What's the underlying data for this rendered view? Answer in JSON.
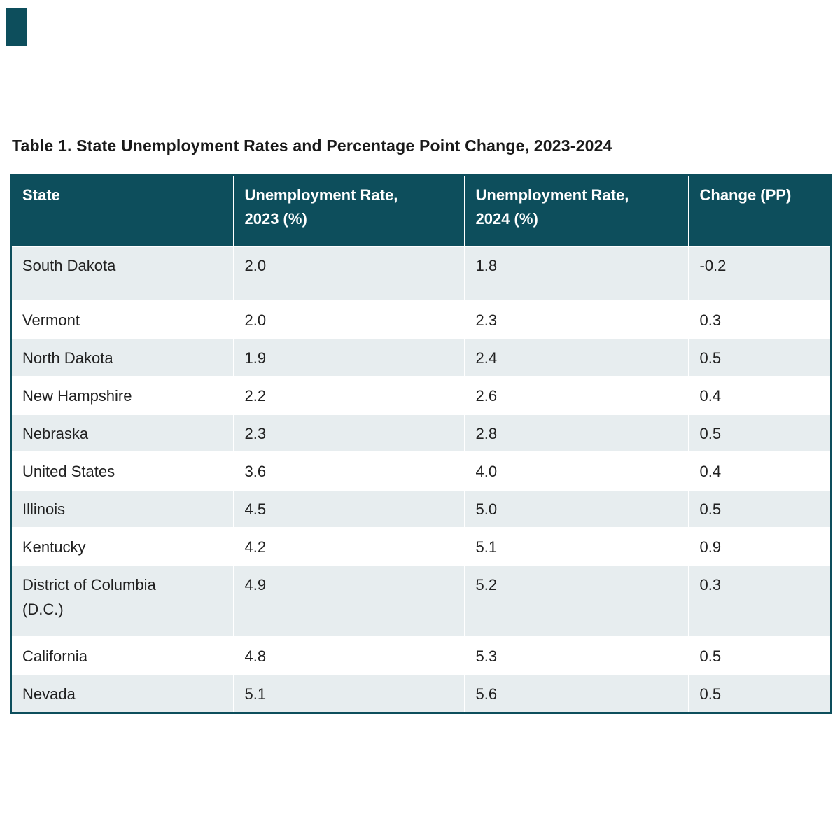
{
  "page": {
    "title": "Table 1. State Unemployment Rates and Percentage Point Change, 2023-2024"
  },
  "colors": {
    "header_bg": "#0d4e5c",
    "header_text": "#ffffff",
    "row_stripe_bg": "#e7edef",
    "row_plain_bg": "#ffffff",
    "body_text": "#212121",
    "table_border": "#0d4e5c",
    "cell_divider": "#ffffff",
    "corner_accent": "#0d4e5c"
  },
  "table": {
    "columns": [
      "State",
      "Unemployment Rate,\n2023 (%)",
      "Unemployment Rate,\n2024 (%)",
      "Change (PP)"
    ],
    "rows": [
      {
        "state": "South Dakota",
        "rate_2023": "2.0",
        "rate_2024": "1.8",
        "change_pp": "-0.2"
      },
      {
        "state": "Vermont",
        "rate_2023": "2.0",
        "rate_2024": "2.3",
        "change_pp": "0.3"
      },
      {
        "state": "North Dakota",
        "rate_2023": "1.9",
        "rate_2024": "2.4",
        "change_pp": "0.5"
      },
      {
        "state": "New Hampshire",
        "rate_2023": "2.2",
        "rate_2024": "2.6",
        "change_pp": "0.4"
      },
      {
        "state": "Nebraska",
        "rate_2023": "2.3",
        "rate_2024": "2.8",
        "change_pp": "0.5"
      },
      {
        "state": "United States",
        "rate_2023": "3.6",
        "rate_2024": "4.0",
        "change_pp": "0.4"
      },
      {
        "state": "Illinois",
        "rate_2023": "4.5",
        "rate_2024": "5.0",
        "change_pp": "0.5"
      },
      {
        "state": "Kentucky",
        "rate_2023": "4.2",
        "rate_2024": "5.1",
        "change_pp": "0.9"
      },
      {
        "state": "District of Columbia\n(D.C.)",
        "rate_2023": "4.9",
        "rate_2024": "5.2",
        "change_pp": "0.3"
      },
      {
        "state": "California",
        "rate_2023": "4.8",
        "rate_2024": "5.3",
        "change_pp": "0.5"
      },
      {
        "state": "Nevada",
        "rate_2023": "5.1",
        "rate_2024": "5.6",
        "change_pp": "0.5"
      }
    ]
  }
}
